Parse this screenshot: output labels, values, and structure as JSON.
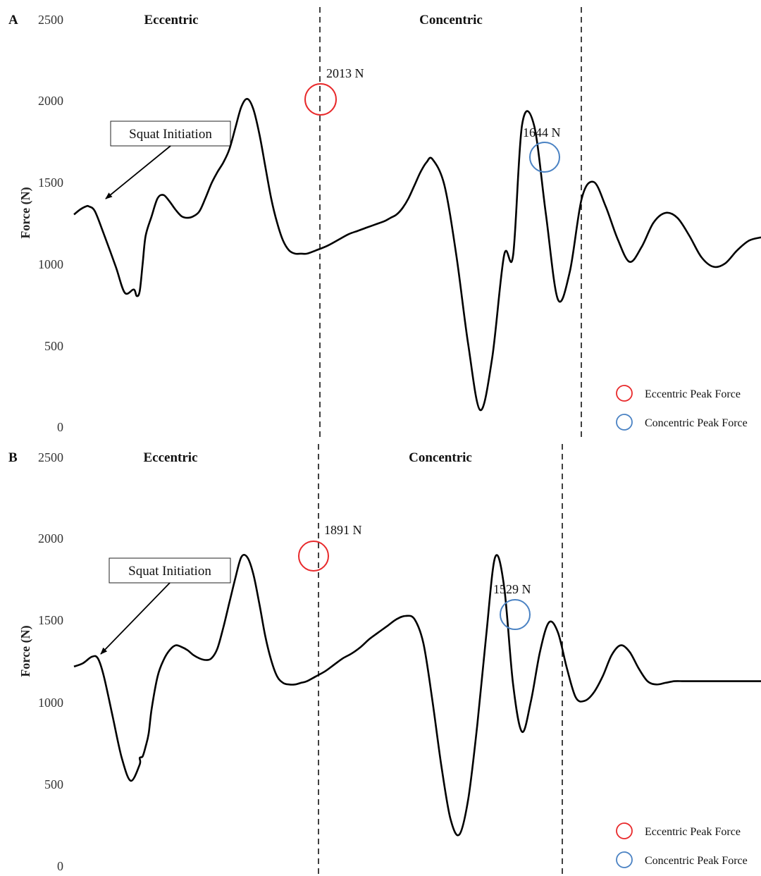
{
  "chart_data": [
    {
      "type": "line",
      "panel": "A",
      "ylabel": "Force (N)",
      "ylim": [
        0,
        2500
      ],
      "yticks": [
        0,
        500,
        1000,
        1500,
        2000,
        2500
      ],
      "grid": false,
      "phases": [
        "Eccentric",
        "Concentric"
      ],
      "callout": "Squat Initiation",
      "annotations": [
        {
          "text": "2013 N",
          "kind": "eccentric",
          "color": "#e8292b",
          "y": 2013
        },
        {
          "text": "1644 N",
          "kind": "concentric",
          "color": "#4a82c3",
          "y": 1644
        }
      ],
      "legend": {
        "position": "bottom-right",
        "items": [
          {
            "label": "Eccentric Peak Force",
            "color": "#e8292b"
          },
          {
            "label": "Concentric Peak Force",
            "color": "#4a82c3"
          }
        ]
      },
      "series": [
        {
          "color": "#000000",
          "x": [
            0,
            2,
            4,
            5,
            7,
            10,
            14,
            17,
            20,
            21,
            22,
            23,
            24,
            26,
            28,
            30,
            32,
            34,
            36,
            38,
            40,
            42,
            44,
            46,
            48,
            50,
            52,
            54,
            56,
            58,
            60,
            62,
            64,
            66,
            68,
            70,
            72,
            74,
            76,
            78,
            81,
            85,
            89,
            92,
            95,
            98,
            101,
            104,
            106,
            108,
            110,
            112,
            114,
            116,
            118,
            120,
            124,
            128,
            132,
            136,
            140,
            144,
            147,
            150,
            154,
            158,
            162,
            166,
            170,
            174,
            178,
            182,
            186,
            190,
            194,
            198,
            202,
            206,
            210,
            214,
            218,
            222,
            226,
            230
          ],
          "y": [
            1300,
            1330,
            1350,
            1350,
            1320,
            1180,
            980,
            820,
            840,
            800,
            830,
            1000,
            1170,
            1290,
            1400,
            1420,
            1380,
            1330,
            1290,
            1280,
            1290,
            1320,
            1400,
            1490,
            1560,
            1620,
            1700,
            1830,
            1960,
            2010,
            1950,
            1800,
            1600,
            1400,
            1250,
            1140,
            1080,
            1060,
            1060,
            1060,
            1080,
            1110,
            1150,
            1180,
            1200,
            1220,
            1240,
            1260,
            1280,
            1300,
            1340,
            1400,
            1480,
            1560,
            1620,
            1640,
            1480,
            1050,
            500,
            100,
            420,
            1050,
            1050,
            1850,
            1850,
            1300,
            780,
            950,
            1400,
            1500,
            1350,
            1150,
            1010,
            1100,
            1250,
            1310,
            1280,
            1170,
            1040,
            980,
            1000,
            1080,
            1140,
            1160
          ]
        }
      ]
    },
    {
      "type": "line",
      "panel": "B",
      "ylabel": "Force (N)",
      "ylim": [
        0,
        2500
      ],
      "yticks": [
        0,
        500,
        1000,
        1500,
        2000,
        2500
      ],
      "grid": false,
      "phases": [
        "Eccentric",
        "Concentric"
      ],
      "callout": "Squat Initiation",
      "annotations": [
        {
          "text": "1891 N",
          "kind": "eccentric",
          "color": "#e8292b",
          "y": 1891
        },
        {
          "text": "1529 N",
          "kind": "concentric",
          "color": "#4a82c3",
          "y": 1529
        }
      ],
      "legend": {
        "position": "bottom-right",
        "items": [
          {
            "label": "Eccentric Peak Force",
            "color": "#e8292b"
          },
          {
            "label": "Concentric Peak Force",
            "color": "#4a82c3"
          }
        ]
      },
      "series": [
        {
          "color": "#000000",
          "x": [
            0,
            3,
            6,
            8,
            10,
            13,
            16,
            19,
            22,
            22,
            23,
            24,
            25,
            26,
            28,
            30,
            32,
            34,
            36,
            38,
            40,
            42,
            44,
            46,
            48,
            50,
            52,
            54,
            56,
            58,
            60,
            62,
            64,
            66,
            68,
            70,
            72,
            74,
            76,
            78,
            81,
            84,
            87,
            90,
            93,
            96,
            99,
            102,
            105,
            108,
            111,
            114,
            117,
            120,
            123,
            126,
            129,
            132,
            135,
            138,
            141,
            144,
            147,
            150,
            153,
            156,
            159,
            162,
            165,
            168,
            171,
            174,
            177,
            180,
            183,
            186,
            189,
            192,
            195,
            198,
            201,
            204,
            207,
            210,
            213,
            216,
            219,
            222,
            225,
            230
          ],
          "y": [
            1210,
            1230,
            1270,
            1260,
            1150,
            900,
            650,
            510,
            610,
            650,
            660,
            720,
            800,
            950,
            1150,
            1250,
            1310,
            1340,
            1330,
            1310,
            1280,
            1260,
            1250,
            1260,
            1320,
            1450,
            1600,
            1750,
            1880,
            1880,
            1780,
            1600,
            1400,
            1250,
            1150,
            1110,
            1100,
            1100,
            1110,
            1120,
            1150,
            1180,
            1220,
            1260,
            1290,
            1330,
            1380,
            1420,
            1460,
            1500,
            1520,
            1500,
            1350,
            1000,
            600,
            280,
            180,
            400,
            850,
            1400,
            1880,
            1700,
            1100,
            810,
            1000,
            1300,
            1480,
            1420,
            1200,
            1020,
            1000,
            1050,
            1150,
            1280,
            1340,
            1300,
            1200,
            1120,
            1100,
            1110,
            1120,
            1120,
            1120,
            1120,
            1120,
            1120,
            1120,
            1120,
            1120,
            1120
          ]
        }
      ]
    }
  ]
}
